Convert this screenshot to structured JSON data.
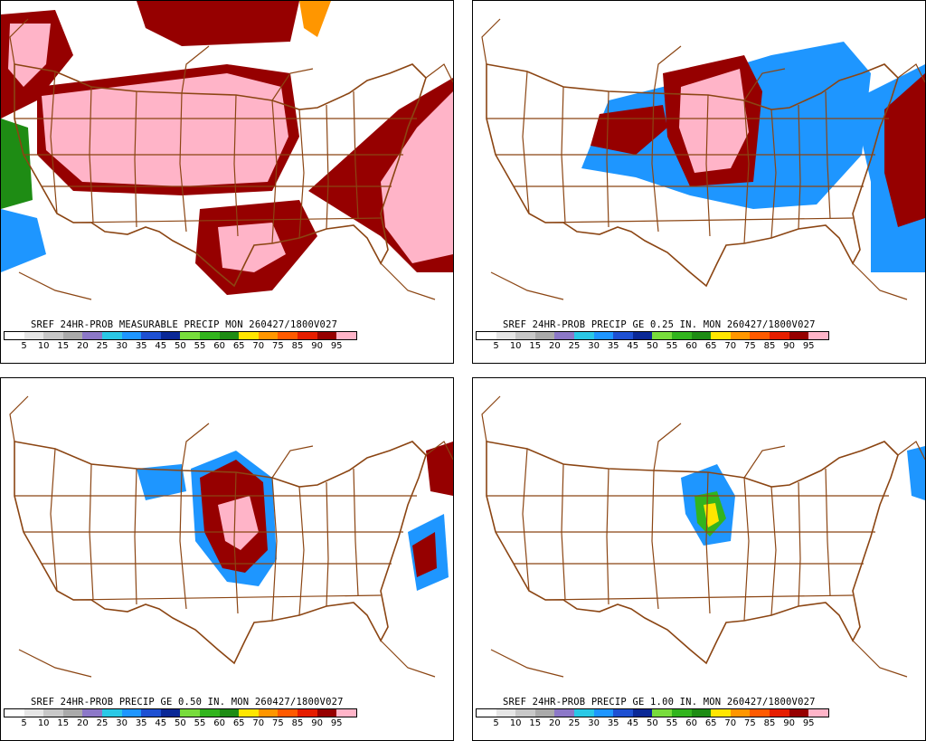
{
  "panels": [
    {
      "caption": "SREF 24HR-PROB MEASURABLE PRECIP MON 260427/1800V027",
      "threshold": "measurable"
    },
    {
      "caption": "SREF 24HR-PROB PRECIP GE 0.25 IN. MON 260427/1800V027",
      "threshold": "0.25"
    },
    {
      "caption": "SREF 24HR-PROB PRECIP GE 0.50 IN. MON 260427/1800V027",
      "threshold": "0.50"
    },
    {
      "caption": "SREF 24HR-PROB PRECIP GE 1.00 IN. MON 260427/1800V027",
      "threshold": "1.00"
    }
  ],
  "scale": {
    "labels": [
      "5",
      "10",
      "15",
      "20",
      "25",
      "30",
      "35",
      "45",
      "50",
      "55",
      "60",
      "65",
      "70",
      "75",
      "85",
      "90",
      "95"
    ],
    "colors": [
      "#ffffff",
      "#e6e6e6",
      "#c8c8c8",
      "#aaaaaa",
      "#8c78c8",
      "#2ac8e6",
      "#1e96ff",
      "#1e50d2",
      "#0a2896",
      "#78dc3c",
      "#32b41e",
      "#1e8c14",
      "#ffe600",
      "#ff9600",
      "#ff5a00",
      "#e61e00",
      "#960000",
      "#ffb4c8"
    ]
  },
  "colors": {
    "boundary": "#8b4513",
    "frame": "#000000"
  }
}
